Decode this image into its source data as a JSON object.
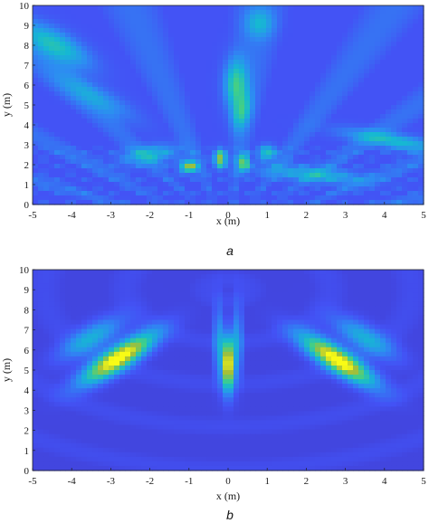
{
  "chart_data": [
    {
      "type": "heatmap",
      "panel_label": "a",
      "xlabel": "x (m)",
      "ylabel": "y (m)",
      "xlim": [
        -5,
        5
      ],
      "ylim": [
        0,
        10
      ],
      "xticks": [
        "-5",
        "-4",
        "-3",
        "-2",
        "-1",
        "0",
        "1",
        "2",
        "3",
        "4",
        "5"
      ],
      "yticks": [
        "0",
        "1",
        "2",
        "3",
        "4",
        "5",
        "6",
        "7",
        "8",
        "9",
        "10"
      ],
      "colormap": [
        "#3e26a8",
        "#4352f5",
        "#2d8cf2",
        "#16b8d2",
        "#3fcf8a",
        "#a5be38",
        "#f9fb15"
      ],
      "background_level": 0.17,
      "features": [
        {
          "kind": "blob",
          "x": -4.4,
          "y": 8.0,
          "sx": 0.35,
          "sy": 0.9,
          "amp": 0.38,
          "rot": -0.6
        },
        {
          "kind": "blob",
          "x": 4.2,
          "y": 3.2,
          "sx": 0.9,
          "sy": 0.25,
          "amp": 0.35,
          "rot": 0.35
        },
        {
          "kind": "blob",
          "x": 0.2,
          "y": 6.0,
          "sx": 0.2,
          "sy": 0.9,
          "amp": 0.45,
          "rot": 0.0
        },
        {
          "kind": "blob",
          "x": 0.35,
          "y": 4.6,
          "sx": 0.15,
          "sy": 0.6,
          "amp": 0.3,
          "rot": 0.1
        },
        {
          "kind": "blob",
          "x": -1.0,
          "y": 1.9,
          "sx": 0.15,
          "sy": 0.2,
          "amp": 0.65,
          "rot": 0.0
        },
        {
          "kind": "blob",
          "x": -0.2,
          "y": 2.3,
          "sx": 0.1,
          "sy": 0.3,
          "amp": 0.65,
          "rot": 0.0
        },
        {
          "kind": "blob",
          "x": 0.4,
          "y": 2.1,
          "sx": 0.1,
          "sy": 0.3,
          "amp": 0.55,
          "rot": 0.0
        },
        {
          "kind": "blob",
          "x": 1.0,
          "y": 2.6,
          "sx": 0.15,
          "sy": 0.25,
          "amp": 0.4,
          "rot": 0.0
        },
        {
          "kind": "blob",
          "x": 0.8,
          "y": 9.1,
          "sx": 0.25,
          "sy": 0.5,
          "amp": 0.25,
          "rot": 0.0
        },
        {
          "kind": "blob",
          "x": -2.0,
          "y": 2.5,
          "sx": 0.5,
          "sy": 0.3,
          "amp": 0.3,
          "rot": -0.4
        },
        {
          "kind": "blob",
          "x": 2.2,
          "y": 1.5,
          "sx": 0.9,
          "sy": 0.25,
          "amp": 0.3,
          "rot": 0.2
        },
        {
          "kind": "blob",
          "x": -3.4,
          "y": 5.4,
          "sx": 0.3,
          "sy": 1.0,
          "amp": 0.22,
          "rot": -0.7
        }
      ]
    },
    {
      "type": "heatmap",
      "panel_label": "b",
      "xlabel": "x (m)",
      "ylabel": "y (m)",
      "xlim": [
        -5,
        5
      ],
      "ylim": [
        0,
        10
      ],
      "xticks": [
        "-5",
        "-4",
        "-3",
        "-2",
        "-1",
        "0",
        "1",
        "2",
        "3",
        "4",
        "5"
      ],
      "yticks": [
        "0",
        "1",
        "2",
        "3",
        "4",
        "5",
        "6",
        "7",
        "8",
        "9",
        "10"
      ],
      "colormap": [
        "#3e26a8",
        "#4352f5",
        "#2d8cf2",
        "#16b8d2",
        "#3fcf8a",
        "#a5be38",
        "#f9fb15"
      ],
      "background_level": 0.12,
      "features": [
        {
          "kind": "blob",
          "x": -2.8,
          "y": 5.6,
          "sx": 0.28,
          "sy": 1.0,
          "amp": 0.95,
          "rot": 0.62
        },
        {
          "kind": "blob",
          "x": 0.0,
          "y": 5.3,
          "sx": 0.1,
          "sy": 0.9,
          "amp": 1.0,
          "rot": 0.0
        },
        {
          "kind": "blob",
          "x": 2.8,
          "y": 5.5,
          "sx": 0.28,
          "sy": 1.0,
          "amp": 0.95,
          "rot": -0.62
        },
        {
          "kind": "blob",
          "x": -0.25,
          "y": 6.4,
          "sx": 0.08,
          "sy": 1.2,
          "amp": 0.3,
          "rot": 0.0
        },
        {
          "kind": "blob",
          "x": 0.25,
          "y": 6.4,
          "sx": 0.08,
          "sy": 1.2,
          "amp": 0.3,
          "rot": 0.0
        },
        {
          "kind": "blob",
          "x": -3.5,
          "y": 6.6,
          "sx": 0.3,
          "sy": 0.8,
          "amp": 0.35,
          "rot": 0.62
        },
        {
          "kind": "blob",
          "x": 3.5,
          "y": 6.6,
          "sx": 0.3,
          "sy": 0.8,
          "amp": 0.35,
          "rot": -0.62
        }
      ]
    }
  ]
}
